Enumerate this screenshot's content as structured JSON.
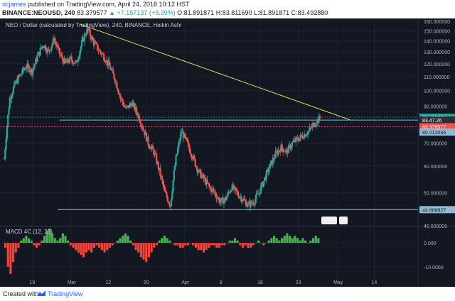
{
  "header": {
    "author": "ricjames",
    "published_text": "published on TradingView.com, April 24, 2018 10:12 HST",
    "symbol": "BINANCE:NEOUSD, 240",
    "last_price": "83.379577",
    "change": "+7.157137 (+9.39%)",
    "ohlc": {
      "open": "O:81.891871",
      "high": "H:83.811690",
      "low": "L:81.891871",
      "close": "C:83.492880"
    }
  },
  "footer": {
    "created_with": "Created with",
    "brand": "TradingView"
  },
  "colors": {
    "background": "#131722",
    "up": "#26a69a",
    "down": "#ef5350",
    "trendline": "#d4d95a",
    "hline": "#8fbcd4",
    "macd_up": "#4caf50",
    "macd_down": "#f44336"
  },
  "chart_data": [
    {
      "type": "candlestick",
      "title": "NEO / Dollar (calculated by TradingView), 240, BINANCE, Heikin Ashi",
      "x_ticks": [
        "19",
        "Mar",
        "12",
        "20",
        "Apr",
        "9",
        "16",
        "23",
        "May",
        "14"
      ],
      "y_ticks": [
        "160.000000",
        "150.000000",
        "140.000000",
        "130.000000",
        "120.000000",
        "110.000000",
        "100.000000",
        "90.000000",
        "80.000000",
        "70.000000",
        "60.000000",
        "50.000000",
        "40.000000"
      ],
      "ylim": [
        40,
        160
      ],
      "y_scale": "log",
      "price_labels": [
        {
          "label": "83.492880",
          "value": 83.49,
          "kind": "last"
        },
        {
          "label": "83.47.26",
          "value": 81.9,
          "kind": "range"
        },
        {
          "label": "83.379577",
          "value": 78.3,
          "kind": "price"
        },
        {
          "label": "80.212036",
          "value": 75.5,
          "kind": "level"
        },
        {
          "label": "44.608827",
          "value": 44.61,
          "kind": "level"
        }
      ],
      "series": [
        {
          "name": "NEOUSD",
          "close_path": [
            [
              0,
              63
            ],
            [
              3,
              95
            ],
            [
              6,
              105
            ],
            [
              9,
              112
            ],
            [
              12,
              118
            ],
            [
              15,
              114
            ],
            [
              18,
              126
            ],
            [
              21,
              137
            ],
            [
              24,
              130
            ],
            [
              27,
              142
            ],
            [
              30,
              128
            ],
            [
              33,
              120
            ],
            [
              36,
              124
            ],
            [
              39,
              120
            ],
            [
              42,
              138
            ],
            [
              45,
              152
            ],
            [
              48,
              140
            ],
            [
              51,
              132
            ],
            [
              54,
              126
            ],
            [
              57,
              118
            ],
            [
              60,
              108
            ],
            [
              63,
              95
            ],
            [
              66,
              88
            ],
            [
              69,
              92
            ],
            [
              72,
              86
            ],
            [
              75,
              78
            ],
            [
              78,
              70
            ],
            [
              81,
              66
            ],
            [
              84,
              58
            ],
            [
              87,
              50
            ],
            [
              90,
              46
            ],
            [
              93,
              63
            ],
            [
              96,
              76
            ],
            [
              99,
              70
            ],
            [
              102,
              64
            ],
            [
              105,
              58
            ],
            [
              108,
              55
            ],
            [
              111,
              52
            ],
            [
              114,
              50
            ],
            [
              117,
              47
            ],
            [
              120,
              48
            ],
            [
              123,
              52
            ],
            [
              126,
              50
            ],
            [
              129,
              48
            ],
            [
              132,
              46
            ],
            [
              135,
              47
            ],
            [
              138,
              50
            ],
            [
              141,
              55
            ],
            [
              144,
              60
            ],
            [
              147,
              65
            ],
            [
              150,
              68
            ],
            [
              153,
              66
            ],
            [
              156,
              70
            ],
            [
              159,
              72
            ],
            [
              162,
              74
            ],
            [
              165,
              76
            ],
            [
              168,
              80
            ],
            [
              171,
              83
            ]
          ]
        }
      ],
      "levels": [
        44.61,
        75.5,
        78.3,
        81.9,
        83.49
      ],
      "trendline": [
        [
          0,
          157
        ],
        [
          175,
          82
        ]
      ]
    },
    {
      "type": "bar",
      "title": "MACD 4C (12, 26)",
      "y_ticks": [
        "0.000",
        "-10.0000"
      ],
      "ylim": [
        -16,
        6
      ],
      "values": [
        -2,
        -10,
        -13,
        -8,
        -4,
        -2,
        1,
        2,
        3,
        2,
        1,
        -1,
        -2,
        -1,
        1,
        3,
        5,
        6,
        4,
        2,
        1,
        2,
        4,
        3,
        1,
        -1,
        -2,
        -3,
        -4,
        -5,
        -6,
        -4,
        -3,
        -4,
        -2,
        -1,
        -2,
        -3,
        -4,
        -3,
        -2,
        -1,
        0,
        1,
        2,
        3,
        4,
        3,
        1,
        -1,
        -3,
        -4,
        -6,
        -7,
        -8,
        -6,
        -4,
        -2,
        -1,
        1,
        2,
        3,
        2,
        1,
        0,
        -1,
        -1,
        -2,
        -2,
        -1,
        -1,
        0,
        -1,
        -2,
        -3,
        -3,
        -4,
        -3,
        -2,
        -1,
        -1,
        -2,
        -2,
        -1,
        -1,
        0,
        1,
        1,
        2,
        1,
        -1,
        -2,
        -1,
        -2,
        -2,
        -1,
        0,
        1,
        0,
        -1,
        0,
        1,
        2,
        3,
        2,
        1,
        2,
        3,
        4,
        3,
        2,
        3,
        2,
        1,
        2,
        1,
        0,
        1,
        2,
        3,
        2
      ]
    }
  ]
}
